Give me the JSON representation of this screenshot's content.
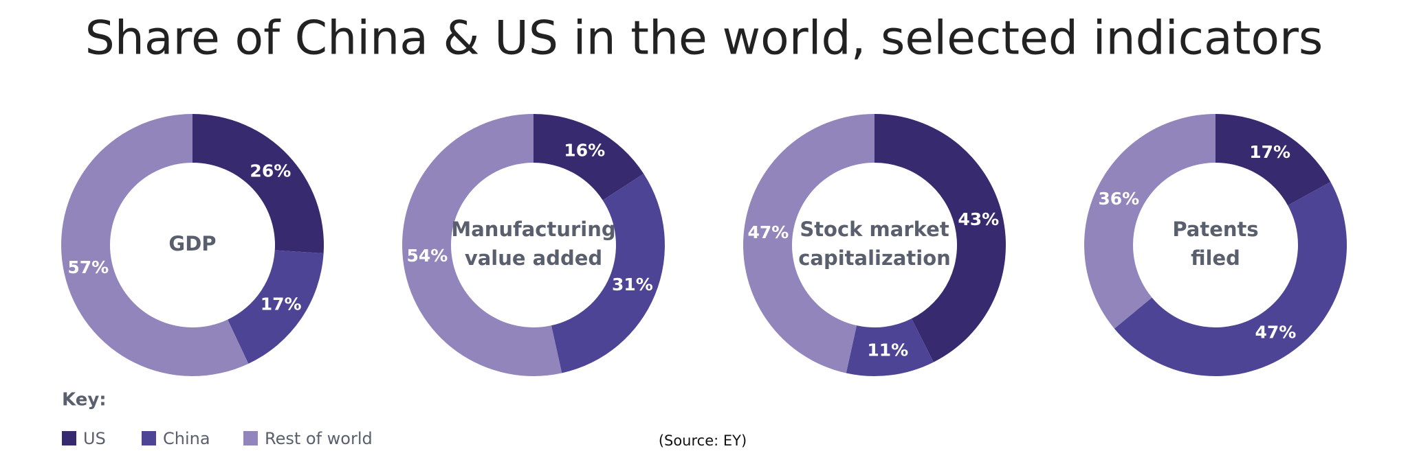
{
  "title": "Share of China & US in the world, selected indicators",
  "legend": {
    "title": "Key:",
    "items": [
      {
        "name": "US",
        "color": "#372a6e"
      },
      {
        "name": "China",
        "color": "#4d4496"
      },
      {
        "name": "Rest of world",
        "color": "#9185bb"
      }
    ]
  },
  "source": "(Source: EY)",
  "chart_data": [
    {
      "type": "donut",
      "center_label": [
        "GDP"
      ],
      "values": [
        26,
        17,
        57
      ],
      "value_labels": [
        "26%",
        "17%",
        "57%"
      ]
    },
    {
      "type": "donut",
      "center_label": [
        "Manufacturing",
        "value added"
      ],
      "values": [
        16,
        31,
        54
      ],
      "value_labels": [
        "16%",
        "31%",
        "54%"
      ]
    },
    {
      "type": "donut",
      "center_label": [
        "Stock market",
        "capitalization"
      ],
      "values": [
        43,
        11,
        47
      ],
      "value_labels": [
        "43%",
        "11%",
        "47%"
      ]
    },
    {
      "type": "donut",
      "center_label": [
        "Patents",
        "filed"
      ],
      "values": [
        17,
        47,
        36
      ],
      "value_labels": [
        "17%",
        "47%",
        "36%"
      ]
    }
  ]
}
